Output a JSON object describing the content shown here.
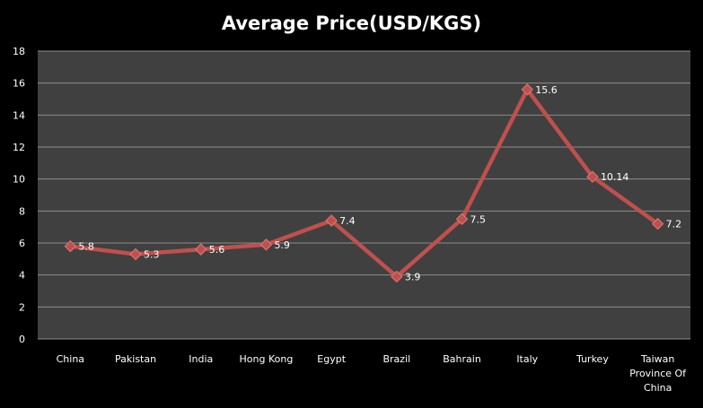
{
  "chart_data": {
    "type": "line",
    "title": "Average Price(USD/KGS)",
    "xlabel": "",
    "ylabel": "",
    "categories": [
      "China",
      "Pakistan",
      "India",
      "Hong Kong",
      "Egypt",
      "Brazil",
      "Bahrain",
      "Italy",
      "Turkey",
      "Taiwan Province Of China"
    ],
    "series": [
      {
        "values": [
          5.8,
          5.3,
          5.6,
          5.9,
          7.4,
          3.9,
          7.5,
          15.6,
          10.14,
          7.2
        ]
      }
    ],
    "data_labels": [
      "5.8",
      "5.3",
      "5.6",
      "5.9",
      "7.4",
      "3.9",
      "7.5",
      "15.6",
      "10.14",
      "7.2"
    ],
    "ylim": [
      0,
      18
    ],
    "yticks": [
      0,
      2,
      4,
      6,
      8,
      10,
      12,
      14,
      16,
      18
    ],
    "grid": true,
    "legend": "none",
    "colors": {
      "background": "#000000",
      "plot_area": "#404040",
      "grid": "#8c8c8c",
      "line": "#c0504d",
      "marker": "#c0504d",
      "text": "#ffffff"
    }
  }
}
